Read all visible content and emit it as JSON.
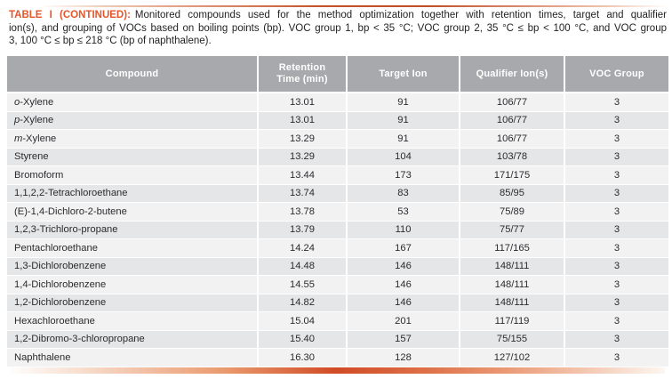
{
  "colors": {
    "accent_orange": "#e4552c",
    "header_bg": "#a7a9ac",
    "header_text": "#ffffff",
    "row_odd_bg": "#f2f2f3",
    "row_even_bg": "#e5e6e7",
    "gradient_deep": "#d04b26",
    "body_text": "#2b2b2e"
  },
  "caption": {
    "label": "TABLE I (CONTINUED):",
    "line1": "Monitored compounds used for the method optimization together with retention times, target and qualifier",
    "line2": "ion(s), and grouping of VOCs based on boiling points (bp). VOC group 1, bp < 35 °C; VOC group 2, 35 °C ≤ bp < 100 °C, and VOC group",
    "line3": "3, 100 °C ≤ bp ≤ 218 °C (bp of naphthalene)."
  },
  "table": {
    "headers": [
      "Compound",
      "Retention Time (min)",
      "Target Ion",
      "Qualifier Ion(s)",
      "VOC Group"
    ],
    "rows": [
      {
        "prefix": "o",
        "compound": "-Xylene",
        "rt": "13.01",
        "target": "91",
        "qualifier": "106/77",
        "group": "3"
      },
      {
        "prefix": "p",
        "compound": "-Xylene",
        "rt": "13.01",
        "target": "91",
        "qualifier": "106/77",
        "group": "3"
      },
      {
        "prefix": "m",
        "compound": "-Xylene",
        "rt": "13.29",
        "target": "91",
        "qualifier": "106/77",
        "group": "3"
      },
      {
        "prefix": "",
        "compound": "Styrene",
        "rt": "13.29",
        "target": "104",
        "qualifier": "103/78",
        "group": "3"
      },
      {
        "prefix": "",
        "compound": "Bromoform",
        "rt": "13.44",
        "target": "173",
        "qualifier": "171/175",
        "group": "3"
      },
      {
        "prefix": "",
        "compound": "1,1,2,2-Tetrachloroethane",
        "rt": "13.74",
        "target": "83",
        "qualifier": "85/95",
        "group": "3"
      },
      {
        "prefix": "",
        "compound": "(E)-1,4-Dichloro-2-butene",
        "rt": "13.78",
        "target": "53",
        "qualifier": "75/89",
        "group": "3"
      },
      {
        "prefix": "",
        "compound": "1,2,3-Trichloro-propane",
        "rt": "13.79",
        "target": "110",
        "qualifier": "75/77",
        "group": "3"
      },
      {
        "prefix": "",
        "compound": "Pentachloroethane",
        "rt": "14.24",
        "target": "167",
        "qualifier": "117/165",
        "group": "3"
      },
      {
        "prefix": "",
        "compound": "1,3-Dichlorobenzene",
        "rt": "14.48",
        "target": "146",
        "qualifier": "148/111",
        "group": "3"
      },
      {
        "prefix": "",
        "compound": "1,4-Dichlorobenzene",
        "rt": "14.55",
        "target": "146",
        "qualifier": "148/111",
        "group": "3"
      },
      {
        "prefix": "",
        "compound": "1,2-Dichlorobenzene",
        "rt": "14.82",
        "target": "146",
        "qualifier": "148/111",
        "group": "3"
      },
      {
        "prefix": "",
        "compound": "Hexachloroethane",
        "rt": "15.04",
        "target": "201",
        "qualifier": "117/119",
        "group": "3"
      },
      {
        "prefix": "",
        "compound": "1,2-Dibromo-3-chloropropane",
        "rt": "15.40",
        "target": "157",
        "qualifier": "75/155",
        "group": "3"
      },
      {
        "prefix": "",
        "compound": "Naphthalene",
        "rt": "16.30",
        "target": "128",
        "qualifier": "127/102",
        "group": "3"
      }
    ]
  }
}
